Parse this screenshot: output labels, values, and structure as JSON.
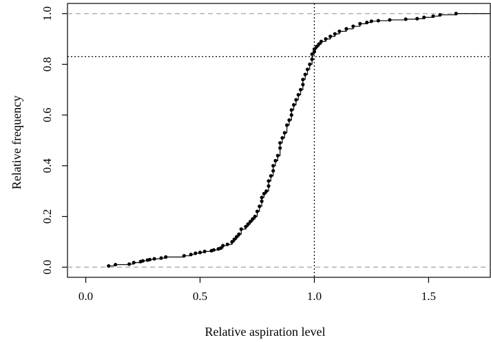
{
  "chart_data": {
    "type": "scatter",
    "xlabel": "Relative aspiration level",
    "ylabel": "Relative frequency",
    "xlim": [
      -0.08,
      1.77
    ],
    "ylim": [
      -0.04,
      1.04
    ],
    "xticks": [
      0.0,
      0.5,
      1.0,
      1.5
    ],
    "xtick_labels": [
      "0.0",
      "0.5",
      "1.0",
      "1.5"
    ],
    "yticks": [
      0.0,
      0.2,
      0.4,
      0.6,
      0.8,
      1.0
    ],
    "ytick_labels": [
      "0.0",
      "0.2",
      "0.4",
      "0.6",
      "0.8",
      "1.0"
    ],
    "reference_lines": {
      "horizontal_dashed": [
        0.0,
        1.0
      ],
      "vertical_dotted_x": 1.0,
      "horizontal_dotted_y": 0.83
    },
    "series": [
      {
        "x": [
          0.1,
          0.13,
          0.19,
          0.21,
          0.24,
          0.25,
          0.27,
          0.28,
          0.3,
          0.33,
          0.35,
          0.43,
          0.46,
          0.48,
          0.5,
          0.52,
          0.55,
          0.56,
          0.58,
          0.59,
          0.6,
          0.62,
          0.64,
          0.65,
          0.66,
          0.67,
          0.68,
          0.7,
          0.71,
          0.72,
          0.73,
          0.74,
          0.75,
          0.76,
          0.77,
          0.77,
          0.78,
          0.79,
          0.8,
          0.8,
          0.81,
          0.82,
          0.82,
          0.83,
          0.84,
          0.85,
          0.85,
          0.86,
          0.87,
          0.88,
          0.89,
          0.9,
          0.9,
          0.91,
          0.92,
          0.93,
          0.94,
          0.95,
          0.95,
          0.96,
          0.97,
          0.98,
          0.99,
          0.99,
          1.0,
          1.0,
          1.01,
          1.02,
          1.03,
          1.05,
          1.07,
          1.09,
          1.11,
          1.14,
          1.17,
          1.2,
          1.23,
          1.25,
          1.28,
          1.33,
          1.4,
          1.45,
          1.48,
          1.52,
          1.55,
          1.62
        ],
        "y": [
          0.005,
          0.01,
          0.012,
          0.018,
          0.022,
          0.025,
          0.028,
          0.03,
          0.033,
          0.036,
          0.04,
          0.045,
          0.05,
          0.055,
          0.058,
          0.062,
          0.065,
          0.068,
          0.072,
          0.075,
          0.085,
          0.09,
          0.1,
          0.11,
          0.12,
          0.13,
          0.15,
          0.16,
          0.17,
          0.18,
          0.19,
          0.2,
          0.22,
          0.24,
          0.26,
          0.275,
          0.29,
          0.3,
          0.32,
          0.34,
          0.36,
          0.38,
          0.4,
          0.42,
          0.44,
          0.47,
          0.49,
          0.51,
          0.53,
          0.56,
          0.58,
          0.6,
          0.62,
          0.64,
          0.66,
          0.68,
          0.7,
          0.72,
          0.74,
          0.76,
          0.78,
          0.8,
          0.82,
          0.84,
          0.85,
          0.86,
          0.87,
          0.88,
          0.89,
          0.9,
          0.91,
          0.92,
          0.93,
          0.94,
          0.95,
          0.96,
          0.965,
          0.97,
          0.972,
          0.975,
          0.978,
          0.98,
          0.985,
          0.99,
          0.995,
          1.0
        ]
      }
    ]
  }
}
